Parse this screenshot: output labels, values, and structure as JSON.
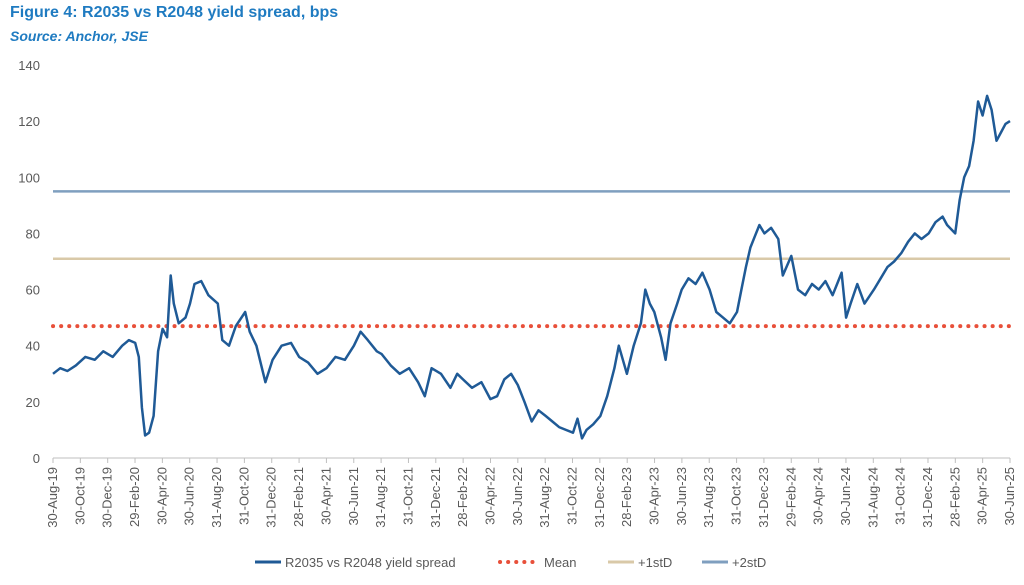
{
  "title": "Figure 4: R2035 vs R2048 yield spread, bps",
  "subtitle": "Source: Anchor, JSE",
  "colors": {
    "series": "#1f5a96",
    "mean": "#e8503a",
    "sd1": "#d9c9a8",
    "sd2": "#7f9fbf",
    "title": "#1f7bc1"
  },
  "chart_data": {
    "type": "line",
    "title": "Figure 4: R2035 vs R2048 yield spread, bps",
    "ylim": [
      0,
      140
    ],
    "yticks": [
      0,
      20,
      40,
      60,
      80,
      100,
      120,
      140
    ],
    "xticks": [
      "30-Aug-19",
      "30-Oct-19",
      "30-Dec-19",
      "29-Feb-20",
      "30-Apr-20",
      "30-Jun-20",
      "31-Aug-20",
      "31-Oct-20",
      "31-Dec-20",
      "28-Feb-21",
      "30-Apr-21",
      "30-Jun-21",
      "31-Aug-21",
      "31-Oct-21",
      "31-Dec-21",
      "28-Feb-22",
      "30-Apr-22",
      "30-Jun-22",
      "31-Aug-22",
      "31-Oct-22",
      "31-Dec-22",
      "28-Feb-23",
      "30-Apr-23",
      "30-Jun-23",
      "31-Aug-23",
      "31-Oct-23",
      "31-Dec-23",
      "29-Feb-24",
      "30-Apr-24",
      "30-Jun-24",
      "31-Aug-24",
      "31-Oct-24",
      "31-Dec-24",
      "28-Feb-25",
      "30-Apr-25",
      "30-Jun-25"
    ],
    "x_start": "2019-08-30",
    "x_end": "2025-06-30",
    "series": [
      {
        "name": "R2035 vs R2048 yield spread",
        "style": "line",
        "points": [
          [
            "2019-08-30",
            30
          ],
          [
            "2019-09-15",
            32
          ],
          [
            "2019-10-01",
            31
          ],
          [
            "2019-10-20",
            33
          ],
          [
            "2019-11-10",
            36
          ],
          [
            "2019-12-01",
            35
          ],
          [
            "2019-12-20",
            38
          ],
          [
            "2020-01-10",
            36
          ],
          [
            "2020-01-31",
            40
          ],
          [
            "2020-02-15",
            42
          ],
          [
            "2020-02-29",
            41
          ],
          [
            "2020-03-08",
            36
          ],
          [
            "2020-03-15",
            18
          ],
          [
            "2020-03-22",
            8
          ],
          [
            "2020-03-31",
            9
          ],
          [
            "2020-04-10",
            15
          ],
          [
            "2020-04-20",
            38
          ],
          [
            "2020-04-30",
            46
          ],
          [
            "2020-05-10",
            43
          ],
          [
            "2020-05-18",
            65
          ],
          [
            "2020-05-25",
            55
          ],
          [
            "2020-06-05",
            48
          ],
          [
            "2020-06-20",
            50
          ],
          [
            "2020-06-30",
            55
          ],
          [
            "2020-07-10",
            62
          ],
          [
            "2020-07-25",
            63
          ],
          [
            "2020-08-10",
            58
          ],
          [
            "2020-08-31",
            55
          ],
          [
            "2020-09-10",
            42
          ],
          [
            "2020-09-25",
            40
          ],
          [
            "2020-10-10",
            47
          ],
          [
            "2020-10-31",
            52
          ],
          [
            "2020-11-10",
            45
          ],
          [
            "2020-11-25",
            40
          ],
          [
            "2020-12-15",
            27
          ],
          [
            "2020-12-31",
            35
          ],
          [
            "2021-01-20",
            40
          ],
          [
            "2021-02-10",
            41
          ],
          [
            "2021-02-28",
            36
          ],
          [
            "2021-03-20",
            34
          ],
          [
            "2021-04-10",
            30
          ],
          [
            "2021-04-30",
            32
          ],
          [
            "2021-05-20",
            36
          ],
          [
            "2021-06-10",
            35
          ],
          [
            "2021-06-30",
            40
          ],
          [
            "2021-07-15",
            45
          ],
          [
            "2021-07-31",
            42
          ],
          [
            "2021-08-20",
            38
          ],
          [
            "2021-08-31",
            37
          ],
          [
            "2021-09-20",
            33
          ],
          [
            "2021-10-10",
            30
          ],
          [
            "2021-10-31",
            32
          ],
          [
            "2021-11-20",
            27
          ],
          [
            "2021-12-05",
            22
          ],
          [
            "2021-12-20",
            32
          ],
          [
            "2022-01-10",
            30
          ],
          [
            "2022-01-31",
            25
          ],
          [
            "2022-02-15",
            30
          ],
          [
            "2022-02-28",
            28
          ],
          [
            "2022-03-20",
            25
          ],
          [
            "2022-04-10",
            27
          ],
          [
            "2022-04-30",
            21
          ],
          [
            "2022-05-15",
            22
          ],
          [
            "2022-05-31",
            28
          ],
          [
            "2022-06-15",
            30
          ],
          [
            "2022-06-30",
            26
          ],
          [
            "2022-07-15",
            20
          ],
          [
            "2022-07-31",
            13
          ],
          [
            "2022-08-15",
            17
          ],
          [
            "2022-08-31",
            15
          ],
          [
            "2022-09-15",
            13
          ],
          [
            "2022-09-30",
            11
          ],
          [
            "2022-10-15",
            10
          ],
          [
            "2022-10-31",
            9
          ],
          [
            "2022-11-10",
            14
          ],
          [
            "2022-11-20",
            7
          ],
          [
            "2022-11-30",
            10
          ],
          [
            "2022-12-15",
            12
          ],
          [
            "2022-12-31",
            15
          ],
          [
            "2023-01-15",
            22
          ],
          [
            "2023-01-31",
            32
          ],
          [
            "2023-02-10",
            40
          ],
          [
            "2023-02-28",
            30
          ],
          [
            "2023-03-15",
            40
          ],
          [
            "2023-03-31",
            48
          ],
          [
            "2023-04-10",
            60
          ],
          [
            "2023-04-20",
            55
          ],
          [
            "2023-04-30",
            52
          ],
          [
            "2023-05-15",
            43
          ],
          [
            "2023-05-25",
            35
          ],
          [
            "2023-06-05",
            48
          ],
          [
            "2023-06-20",
            55
          ],
          [
            "2023-06-30",
            60
          ],
          [
            "2023-07-15",
            64
          ],
          [
            "2023-07-31",
            62
          ],
          [
            "2023-08-15",
            66
          ],
          [
            "2023-08-31",
            60
          ],
          [
            "2023-09-15",
            52
          ],
          [
            "2023-09-30",
            50
          ],
          [
            "2023-10-15",
            48
          ],
          [
            "2023-10-31",
            52
          ],
          [
            "2023-11-10",
            60
          ],
          [
            "2023-11-20",
            68
          ],
          [
            "2023-11-30",
            75
          ],
          [
            "2023-12-10",
            79
          ],
          [
            "2023-12-20",
            83
          ],
          [
            "2023-12-31",
            80
          ],
          [
            "2024-01-15",
            82
          ],
          [
            "2024-01-31",
            78
          ],
          [
            "2024-02-10",
            65
          ],
          [
            "2024-02-29",
            72
          ],
          [
            "2024-03-15",
            60
          ],
          [
            "2024-03-31",
            58
          ],
          [
            "2024-04-15",
            62
          ],
          [
            "2024-04-30",
            60
          ],
          [
            "2024-05-15",
            63
          ],
          [
            "2024-05-31",
            58
          ],
          [
            "2024-06-10",
            62
          ],
          [
            "2024-06-20",
            66
          ],
          [
            "2024-06-30",
            50
          ],
          [
            "2024-07-10",
            55
          ],
          [
            "2024-07-25",
            62
          ],
          [
            "2024-08-10",
            55
          ],
          [
            "2024-08-31",
            60
          ],
          [
            "2024-09-15",
            64
          ],
          [
            "2024-09-30",
            68
          ],
          [
            "2024-10-15",
            70
          ],
          [
            "2024-10-31",
            73
          ],
          [
            "2024-11-15",
            77
          ],
          [
            "2024-11-30",
            80
          ],
          [
            "2024-12-15",
            78
          ],
          [
            "2024-12-31",
            80
          ],
          [
            "2025-01-15",
            84
          ],
          [
            "2025-01-31",
            86
          ],
          [
            "2025-02-10",
            83
          ],
          [
            "2025-02-28",
            80
          ],
          [
            "2025-03-10",
            92
          ],
          [
            "2025-03-20",
            100
          ],
          [
            "2025-03-31",
            104
          ],
          [
            "2025-04-10",
            113
          ],
          [
            "2025-04-20",
            127
          ],
          [
            "2025-04-30",
            122
          ],
          [
            "2025-05-10",
            129
          ],
          [
            "2025-05-20",
            124
          ],
          [
            "2025-05-31",
            113
          ],
          [
            "2025-06-10",
            116
          ],
          [
            "2025-06-20",
            119
          ],
          [
            "2025-06-30",
            120
          ]
        ]
      },
      {
        "name": "Mean",
        "style": "dotted",
        "value": 47
      },
      {
        "name": "+1stD",
        "style": "hline",
        "value": 71
      },
      {
        "name": "+2stD",
        "style": "hline",
        "value": 95
      }
    ],
    "legend": "bottom",
    "grid": false
  }
}
